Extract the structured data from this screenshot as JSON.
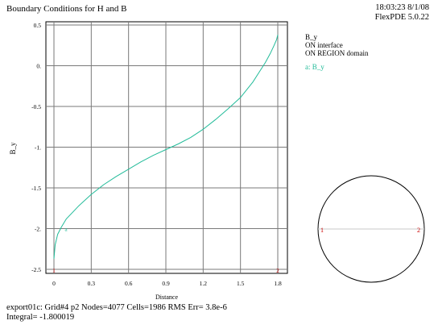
{
  "header": {
    "title": "Boundary Conditions for H and B",
    "time": "18:03:23 8/1/08",
    "version": "FlexPDE 5.0.22"
  },
  "legend": {
    "variable": "B_y",
    "line1": "ON interface",
    "line2": "ON REGION domain",
    "series_label": "a: B_y"
  },
  "footer": {
    "line1": "export01c:  Grid#4  p2  Nodes=4077 Cells=1986 RMS Err= 3.8e-6",
    "line2": "Integral= -1.800019"
  },
  "colors": {
    "series": "#22bb99",
    "marker": "#cc0000",
    "grid": "#7a7a7a"
  },
  "chart_data": {
    "type": "line",
    "xlabel": "Distance",
    "ylabel": "B_y",
    "xlim": [
      0,
      1.8
    ],
    "ylim": [
      -2.5,
      0.5
    ],
    "x_ticks": [
      "0",
      "0.3",
      "0.6",
      "0.9",
      "1.2",
      "1.5",
      "1.8"
    ],
    "y_ticks": [
      "0.5",
      "0.",
      "-0.5",
      "-1.",
      "-1.5",
      "-2.",
      "-2.5"
    ],
    "grid": true,
    "series": [
      {
        "label": "a",
        "x": [
          0,
          0.01,
          0.03,
          0.06,
          0.1,
          0.15,
          0.2,
          0.3,
          0.4,
          0.5,
          0.6,
          0.7,
          0.8,
          0.9,
          1.0,
          1.1,
          1.2,
          1.3,
          1.4,
          1.5,
          1.6,
          1.65,
          1.7,
          1.74,
          1.77,
          1.79,
          1.8
        ],
        "y": [
          -2.37,
          -2.2,
          -2.07,
          -1.98,
          -1.88,
          -1.8,
          -1.72,
          -1.58,
          -1.46,
          -1.36,
          -1.27,
          -1.18,
          -1.1,
          -1.03,
          -0.96,
          -0.88,
          -0.78,
          -0.66,
          -0.53,
          -0.39,
          -0.2,
          -0.08,
          0.04,
          0.15,
          0.25,
          0.32,
          0.38
        ]
      }
    ],
    "markers": [
      {
        "label": "1",
        "x": 0
      },
      {
        "label": "2",
        "x": 1.8
      }
    ],
    "series_marker": {
      "label": "a",
      "x": 0.1,
      "y": -2.0
    }
  },
  "inset": {
    "markers": [
      "1",
      "2"
    ]
  }
}
